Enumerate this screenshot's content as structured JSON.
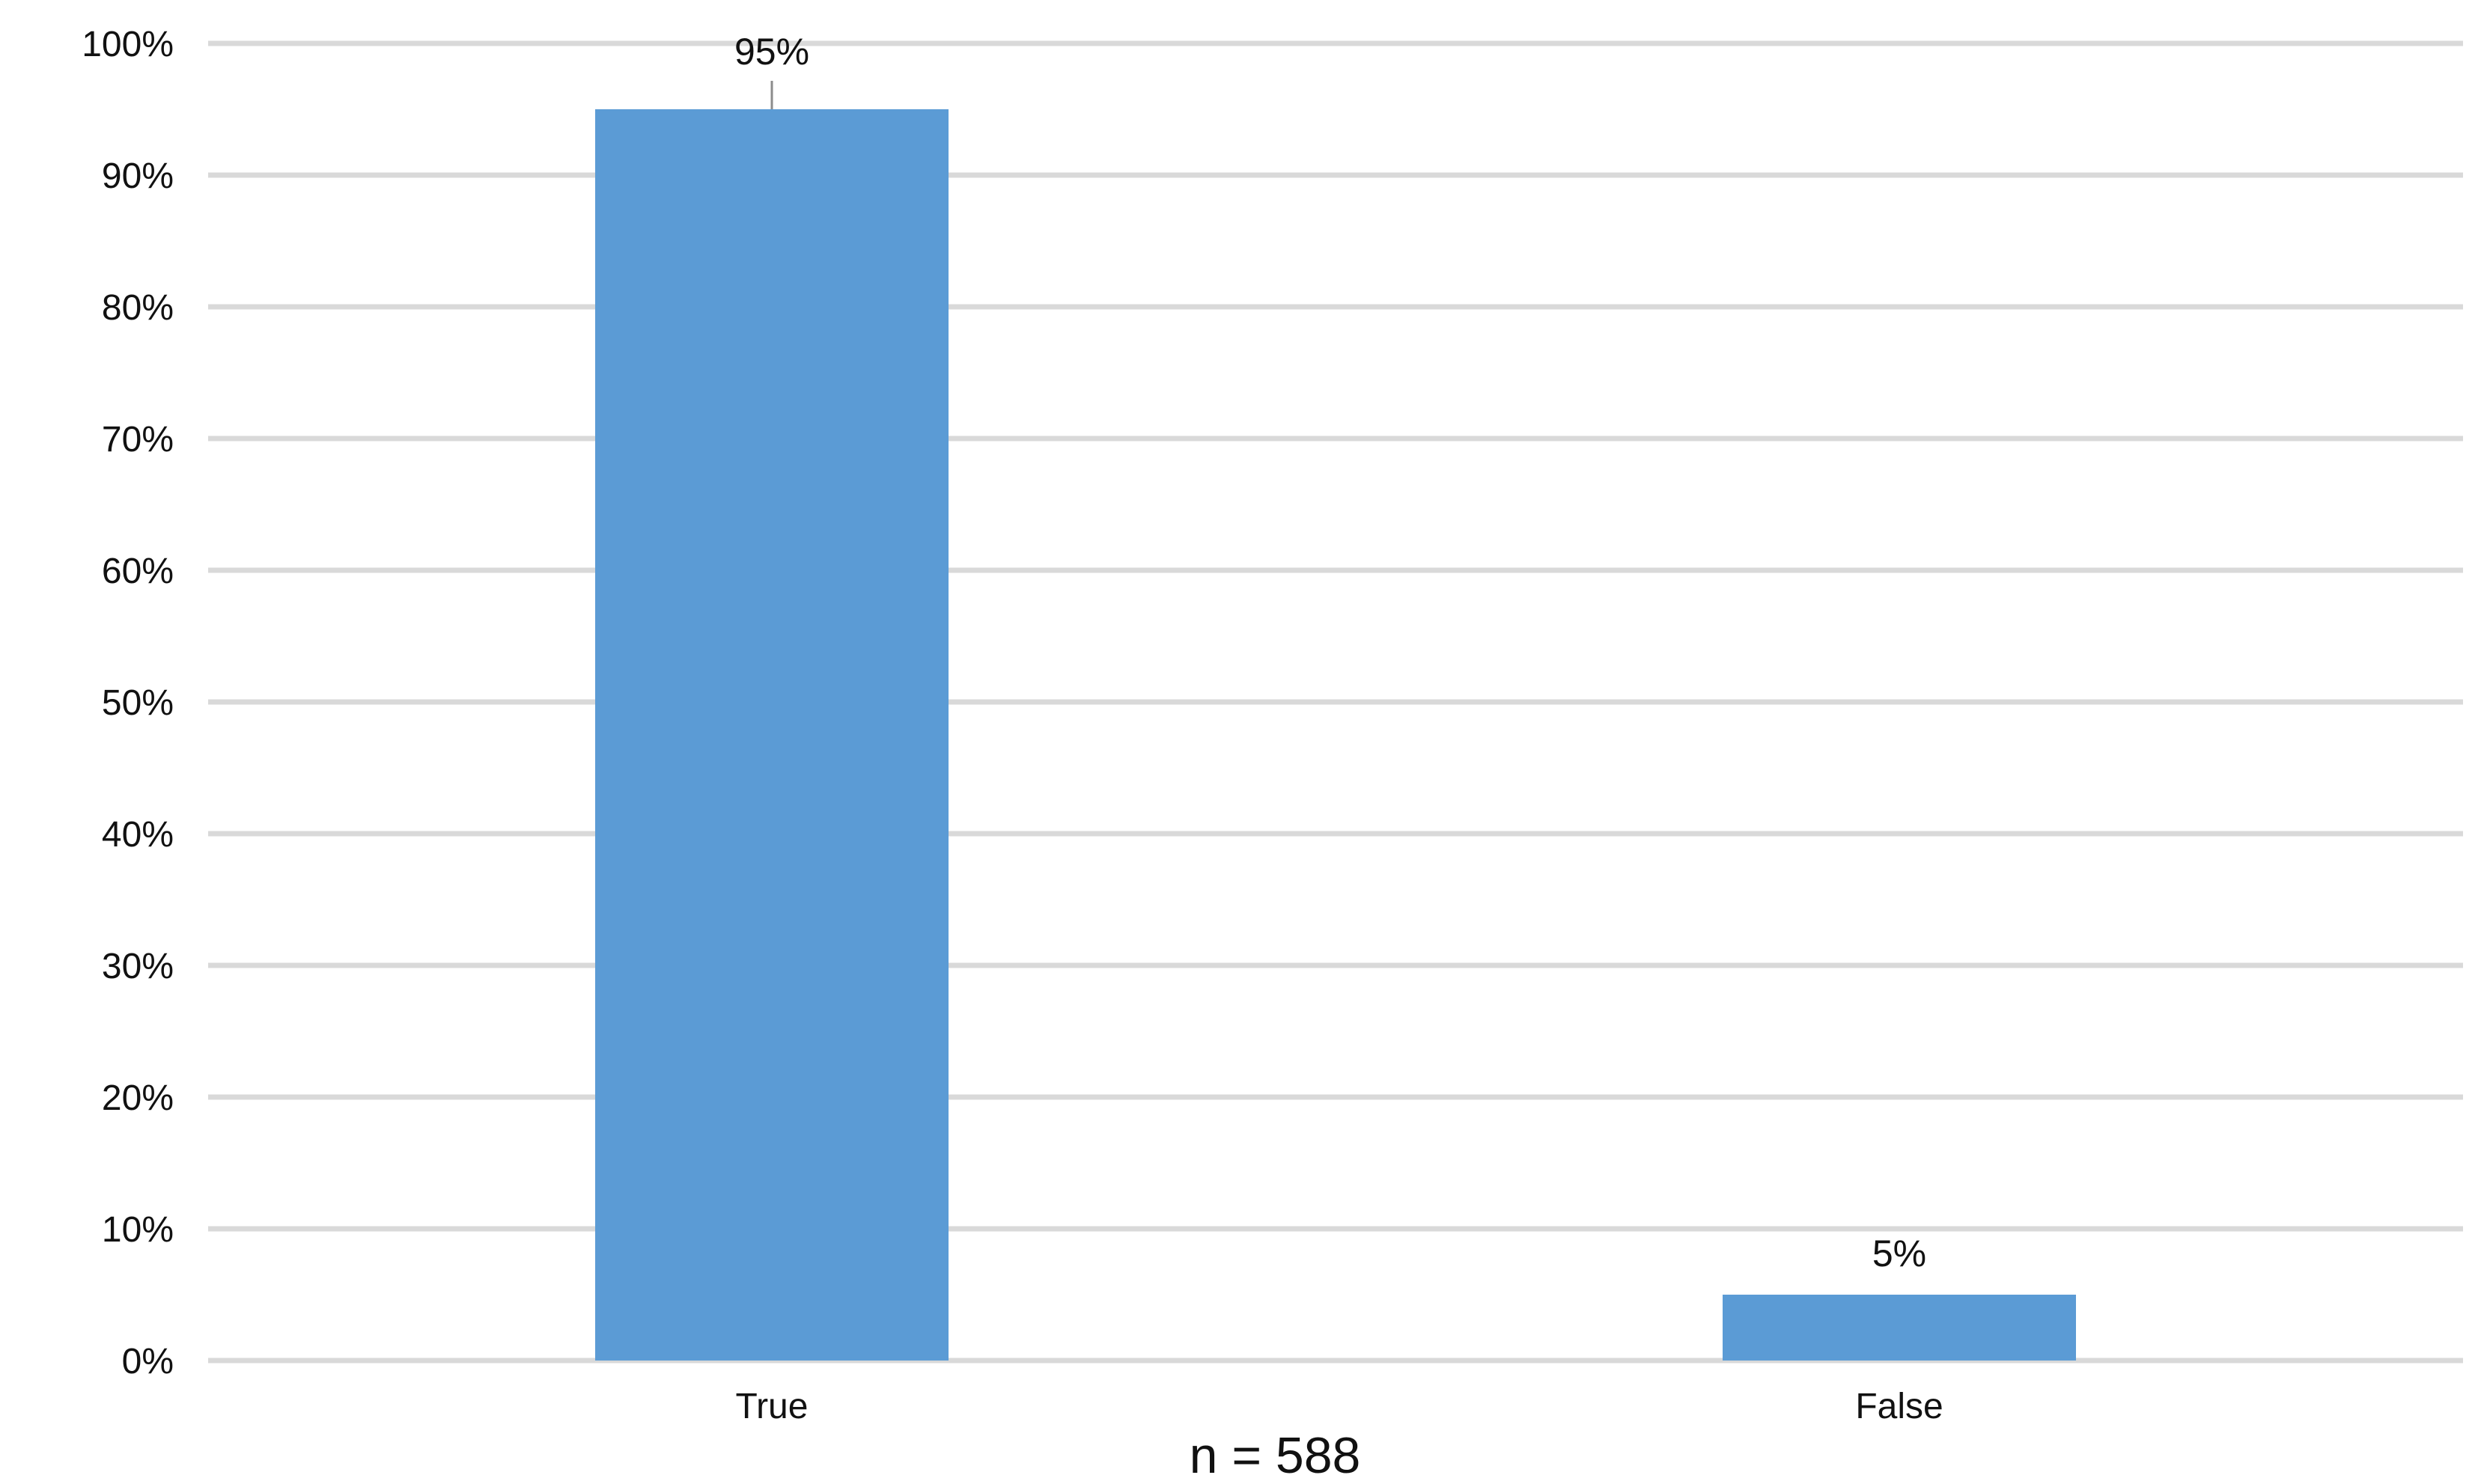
{
  "chart_data": {
    "type": "bar",
    "categories": [
      "True",
      "False"
    ],
    "values": [
      95,
      5
    ],
    "data_labels": [
      "95%",
      "5%"
    ],
    "title": "",
    "xlabel": "",
    "ylabel": "",
    "ylim": [
      0,
      100
    ],
    "y_ticks": [
      "0%",
      "10%",
      "20%",
      "30%",
      "40%",
      "50%",
      "60%",
      "70%",
      "80%",
      "90%",
      "100%"
    ],
    "grid": true,
    "legend": "none",
    "bar_color": "#5B9BD5",
    "footnote": "n = 588"
  }
}
